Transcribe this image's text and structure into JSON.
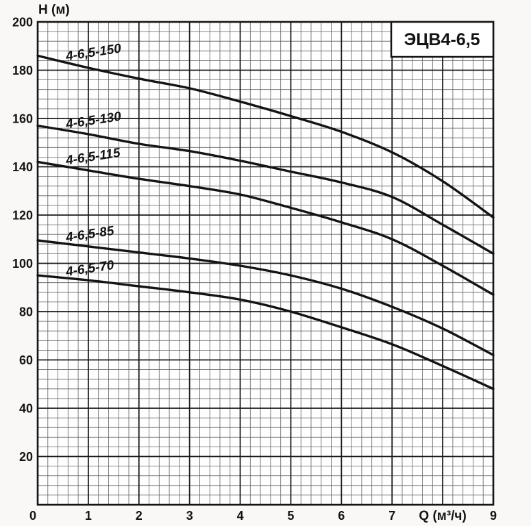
{
  "chart_data": {
    "type": "line",
    "title": "ЭЦВ4-6,5",
    "xlabel": "Q (м³/ч)",
    "ylabel": "H (м)",
    "xlim": [
      0,
      9
    ],
    "ylim": [
      0,
      200
    ],
    "grid": true,
    "legend_position": "none",
    "x_major_step": 1,
    "x_minor_step": 0.2,
    "y_major_step": 20,
    "y_minor_step": 4,
    "x_tick_values": [
      0,
      1,
      2,
      3,
      4,
      5,
      6,
      7,
      9
    ],
    "x_tick_labels": [
      "0",
      "1",
      "2",
      "3",
      "4",
      "5",
      "6",
      "7",
      "9"
    ],
    "xlabel_position_x": 8,
    "y_tick_values": [
      20,
      40,
      60,
      80,
      100,
      120,
      140,
      160,
      180,
      200
    ],
    "x": [
      0,
      1,
      2,
      3,
      4,
      5,
      6,
      7,
      8,
      9
    ],
    "series": [
      {
        "name": "4-6,5-150",
        "values": [
          186,
          181,
          176.5,
          172.5,
          167,
          161,
          154.5,
          146,
          134,
          119
        ]
      },
      {
        "name": "4-6,5-130",
        "values": [
          157,
          153.5,
          149.5,
          146.5,
          142.5,
          138,
          133.5,
          127.5,
          116,
          104
        ]
      },
      {
        "name": "4-6,5-115",
        "values": [
          142,
          138.5,
          135,
          132,
          128.5,
          123,
          117,
          110,
          99,
          87
        ]
      },
      {
        "name": "4-6,5-85",
        "values": [
          109.5,
          107,
          104.5,
          102,
          99,
          95,
          89.5,
          82,
          73,
          62
        ]
      },
      {
        "name": "4-6,5-70",
        "values": [
          95,
          93,
          90.5,
          88,
          85,
          80,
          73.5,
          66.5,
          57.5,
          48
        ]
      }
    ],
    "colors": {
      "curve": "#141414",
      "grid_minor": "#5f5f5f",
      "grid_major": "#1a1a1a",
      "plot_background": "#fefefe",
      "page_background": "#f9f8f6"
    }
  }
}
